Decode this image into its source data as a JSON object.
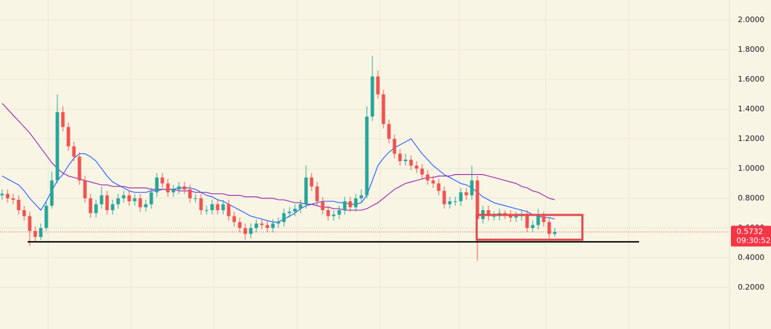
{
  "chart_data": {
    "type": "candlestick",
    "ylim": [
      -0.08,
      2.135
    ],
    "yticks": [
      {
        "value": 2.0,
        "label": "2.0000"
      },
      {
        "value": 1.8,
        "label": "1.8000"
      },
      {
        "value": 1.6,
        "label": "1.6000"
      },
      {
        "value": 1.4,
        "label": "1.4000"
      },
      {
        "value": 1.2,
        "label": "1.2000"
      },
      {
        "value": 1.0,
        "label": "1.0000"
      },
      {
        "value": 0.8,
        "label": "0.8000"
      },
      {
        "value": 0.6,
        "label": "0.6000"
      },
      {
        "value": 0.4,
        "label": "0.4000"
      },
      {
        "value": 0.2,
        "label": "0.2000"
      }
    ],
    "grid": true,
    "up_color": "#26a69a",
    "down_color": "#ef5350",
    "open": [
      0.82,
      0.83,
      0.8,
      0.79,
      0.72,
      0.68,
      0.58,
      0.54,
      0.6,
      0.75,
      0.92,
      1.38,
      1.28,
      1.15,
      1.08,
      0.92,
      0.8,
      0.7,
      0.76,
      0.82,
      0.72,
      0.76,
      0.8,
      0.82,
      0.78,
      0.8,
      0.74,
      0.76,
      0.84,
      0.94,
      0.9,
      0.84,
      0.86,
      0.88,
      0.86,
      0.8,
      0.8,
      0.72,
      0.72,
      0.76,
      0.72,
      0.76,
      0.68,
      0.64,
      0.6,
      0.56,
      0.6,
      0.63,
      0.62,
      0.6,
      0.63,
      0.64,
      0.7,
      0.71,
      0.73,
      0.76,
      0.94,
      0.88,
      0.78,
      0.72,
      0.68,
      0.69,
      0.72,
      0.78,
      0.74,
      0.8,
      0.82,
      1.35,
      1.62,
      1.5,
      1.3,
      1.2,
      1.1,
      1.05,
      1.06,
      1.02,
      1.0,
      0.96,
      0.92,
      0.9,
      0.85,
      0.76,
      0.78,
      0.78,
      0.84,
      0.82,
      0.92,
      0.66,
      0.72,
      0.68,
      0.68,
      0.7,
      0.69,
      0.67,
      0.68,
      0.69,
      0.6,
      0.62,
      0.68,
      0.64,
      0.56
    ],
    "high": [
      0.86,
      0.86,
      0.83,
      0.82,
      0.75,
      0.71,
      0.61,
      0.63,
      0.78,
      0.98,
      1.5,
      1.42,
      1.31,
      1.18,
      1.11,
      0.95,
      0.83,
      0.79,
      0.88,
      0.85,
      0.79,
      0.83,
      0.85,
      0.85,
      0.83,
      0.83,
      0.79,
      0.87,
      0.97,
      0.97,
      0.93,
      0.89,
      0.91,
      0.91,
      0.89,
      0.83,
      0.83,
      0.75,
      0.79,
      0.79,
      0.79,
      0.79,
      0.71,
      0.67,
      0.63,
      0.63,
      0.66,
      0.66,
      0.65,
      0.66,
      0.67,
      0.73,
      0.74,
      0.76,
      0.79,
      1.02,
      0.97,
      0.91,
      0.81,
      0.75,
      0.72,
      0.75,
      0.81,
      0.81,
      0.83,
      0.86,
      1.42,
      1.76,
      1.66,
      1.53,
      1.33,
      1.23,
      1.13,
      1.1,
      1.09,
      1.05,
      1.03,
      0.99,
      0.95,
      0.93,
      0.88,
      0.81,
      0.81,
      0.87,
      0.87,
      1.02,
      0.95,
      0.75,
      0.75,
      0.71,
      0.73,
      0.72,
      0.72,
      0.71,
      0.72,
      0.72,
      0.65,
      0.73,
      0.71,
      0.67,
      0.6
    ],
    "low": [
      0.79,
      0.77,
      0.76,
      0.69,
      0.65,
      0.48,
      0.51,
      0.52,
      0.58,
      0.73,
      0.9,
      1.25,
      1.12,
      1.05,
      0.89,
      0.77,
      0.67,
      0.67,
      0.73,
      0.69,
      0.69,
      0.73,
      0.77,
      0.75,
      0.75,
      0.71,
      0.71,
      0.73,
      0.81,
      0.87,
      0.81,
      0.81,
      0.83,
      0.83,
      0.77,
      0.77,
      0.69,
      0.69,
      0.69,
      0.69,
      0.69,
      0.65,
      0.61,
      0.57,
      0.52,
      0.53,
      0.57,
      0.59,
      0.57,
      0.57,
      0.6,
      0.61,
      0.67,
      0.68,
      0.7,
      0.73,
      0.85,
      0.75,
      0.69,
      0.65,
      0.65,
      0.66,
      0.69,
      0.71,
      0.71,
      0.77,
      0.8,
      1.32,
      1.47,
      1.27,
      1.17,
      1.07,
      1.02,
      1.02,
      0.99,
      0.97,
      0.93,
      0.89,
      0.87,
      0.82,
      0.73,
      0.73,
      0.75,
      0.75,
      0.79,
      0.79,
      0.38,
      0.63,
      0.65,
      0.65,
      0.65,
      0.66,
      0.64,
      0.64,
      0.65,
      0.57,
      0.57,
      0.59,
      0.61,
      0.53,
      0.54
    ],
    "close": [
      0.83,
      0.8,
      0.79,
      0.72,
      0.68,
      0.58,
      0.54,
      0.6,
      0.75,
      0.92,
      1.38,
      1.28,
      1.15,
      1.08,
      0.92,
      0.8,
      0.7,
      0.76,
      0.82,
      0.72,
      0.76,
      0.8,
      0.82,
      0.78,
      0.8,
      0.74,
      0.76,
      0.84,
      0.94,
      0.9,
      0.84,
      0.86,
      0.88,
      0.86,
      0.8,
      0.8,
      0.72,
      0.72,
      0.76,
      0.72,
      0.76,
      0.68,
      0.64,
      0.6,
      0.56,
      0.6,
      0.63,
      0.62,
      0.6,
      0.63,
      0.64,
      0.7,
      0.71,
      0.73,
      0.76,
      0.94,
      0.88,
      0.78,
      0.72,
      0.68,
      0.69,
      0.72,
      0.78,
      0.74,
      0.8,
      0.82,
      1.35,
      1.62,
      1.5,
      1.3,
      1.2,
      1.1,
      1.05,
      1.06,
      1.02,
      1.0,
      0.96,
      0.92,
      0.9,
      0.85,
      0.76,
      0.78,
      0.78,
      0.84,
      0.82,
      0.92,
      0.66,
      0.72,
      0.68,
      0.68,
      0.7,
      0.69,
      0.67,
      0.68,
      0.69,
      0.6,
      0.62,
      0.68,
      0.64,
      0.56,
      0.5732
    ],
    "moving_averages": [
      {
        "color": "#2962ff",
        "values": [
          0.95,
          0.93,
          0.91,
          0.89,
          0.85,
          0.8,
          0.76,
          0.72,
          0.78,
          0.85,
          0.92,
          0.96,
          1.02,
          1.07,
          1.1,
          1.1,
          1.08,
          1.05,
          1.0,
          0.95,
          0.91,
          0.89,
          0.87,
          0.85,
          0.84,
          0.84,
          0.84,
          0.85,
          0.85,
          0.86,
          0.86,
          0.86,
          0.87,
          0.87,
          0.87,
          0.86,
          0.84,
          0.82,
          0.81,
          0.79,
          0.78,
          0.76,
          0.74,
          0.72,
          0.7,
          0.68,
          0.67,
          0.66,
          0.65,
          0.64,
          0.64,
          0.66,
          0.68,
          0.7,
          0.73,
          0.75,
          0.76,
          0.77,
          0.78,
          0.78,
          0.78,
          0.77,
          0.77,
          0.76,
          0.76,
          0.77,
          0.82,
          0.92,
          1.02,
          1.07,
          1.11,
          1.14,
          1.16,
          1.18,
          1.2,
          1.15,
          1.1,
          1.06,
          1.02,
          0.99,
          0.96,
          0.94,
          0.92,
          0.9,
          0.89,
          0.87,
          0.84,
          0.81,
          0.79,
          0.77,
          0.76,
          0.75,
          0.74,
          0.73,
          0.72,
          0.71,
          0.69,
          0.68,
          0.67,
          0.67,
          0.66
        ]
      },
      {
        "color": "#9c27b0",
        "values": [
          1.44,
          1.4,
          1.36,
          1.32,
          1.28,
          1.24,
          1.19,
          1.14,
          1.09,
          1.04,
          1.0,
          0.97,
          0.95,
          0.94,
          0.93,
          0.92,
          0.91,
          0.9,
          0.89,
          0.89,
          0.88,
          0.88,
          0.88,
          0.87,
          0.87,
          0.87,
          0.87,
          0.86,
          0.86,
          0.86,
          0.86,
          0.86,
          0.85,
          0.85,
          0.85,
          0.84,
          0.84,
          0.84,
          0.83,
          0.83,
          0.83,
          0.82,
          0.82,
          0.82,
          0.81,
          0.81,
          0.81,
          0.8,
          0.8,
          0.8,
          0.79,
          0.79,
          0.78,
          0.77,
          0.77,
          0.76,
          0.76,
          0.75,
          0.74,
          0.74,
          0.73,
          0.73,
          0.72,
          0.72,
          0.72,
          0.72,
          0.73,
          0.75,
          0.77,
          0.8,
          0.83,
          0.86,
          0.88,
          0.9,
          0.91,
          0.92,
          0.93,
          0.94,
          0.94,
          0.95,
          0.95,
          0.95,
          0.96,
          0.96,
          0.96,
          0.96,
          0.96,
          0.96,
          0.95,
          0.94,
          0.93,
          0.92,
          0.91,
          0.9,
          0.88,
          0.87,
          0.85,
          0.84,
          0.82,
          0.8,
          0.79
        ]
      }
    ],
    "last_price": 0.5732,
    "countdown": "09:30:52",
    "price_label_color": "#f23645",
    "support_level": 0.507,
    "box": {
      "low": 0.521,
      "high": 0.688,
      "color": "#e0474c"
    }
  }
}
